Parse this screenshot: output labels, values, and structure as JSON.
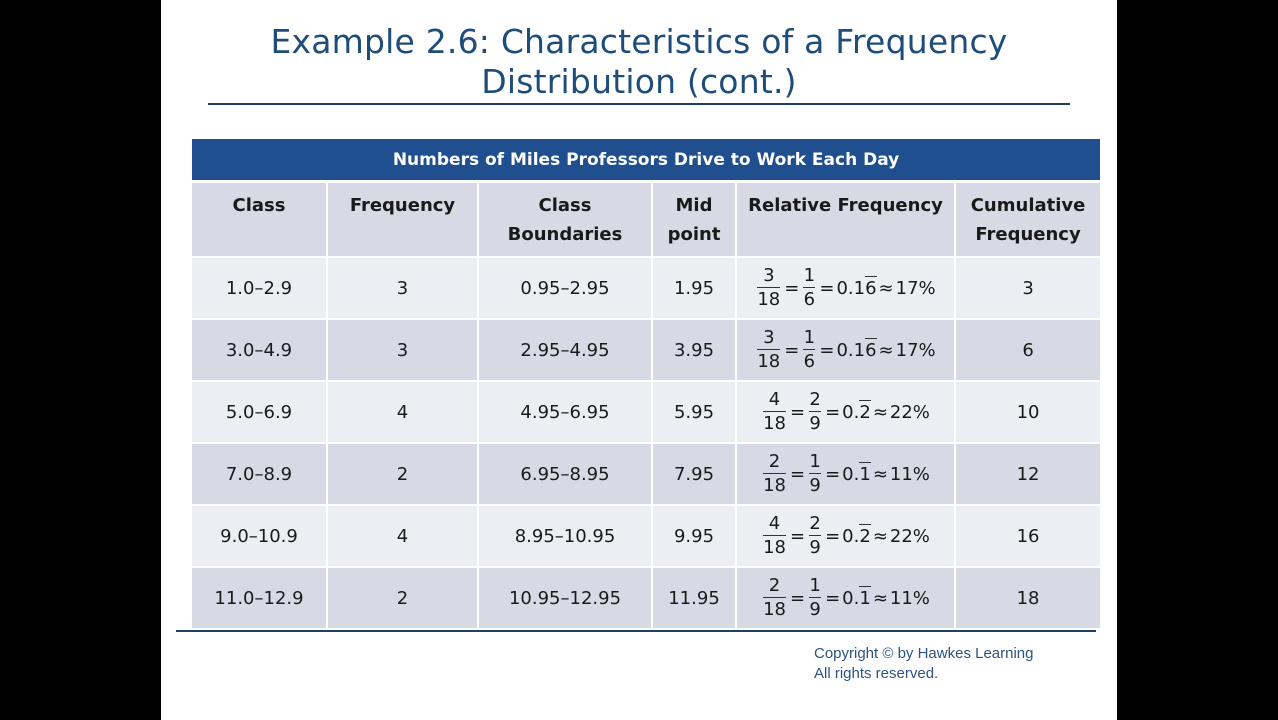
{
  "title": {
    "line1": "Example 2.6: Characteristics of a Frequency",
    "line2": "Distribution (cont.)"
  },
  "table": {
    "caption": "Numbers of Miles Professors Drive to Work Each Day",
    "headers": {
      "class": "Class",
      "frequency": "Frequency",
      "boundaries_1": "Class",
      "boundaries_2": "Boundaries",
      "mid_1": "Mid",
      "mid_2": "point",
      "relative": "Relative Frequency",
      "cumulative_1": "Cumulative",
      "cumulative_2": "Frequency"
    },
    "rows": [
      {
        "class": "1.0–2.9",
        "frequency": "3",
        "boundaries": "0.95–2.95",
        "midpoint": "1.95",
        "rf": {
          "n1": "3",
          "d1": "18",
          "n2": "1",
          "d2": "6",
          "dec_prefix": "0.1",
          "dec_repeat": "6",
          "pct": "17%"
        },
        "cumulative": "3"
      },
      {
        "class": "3.0–4.9",
        "frequency": "3",
        "boundaries": "2.95–4.95",
        "midpoint": "3.95",
        "rf": {
          "n1": "3",
          "d1": "18",
          "n2": "1",
          "d2": "6",
          "dec_prefix": "0.1",
          "dec_repeat": "6",
          "pct": "17%"
        },
        "cumulative": "6"
      },
      {
        "class": "5.0–6.9",
        "frequency": "4",
        "boundaries": "4.95–6.95",
        "midpoint": "5.95",
        "rf": {
          "n1": "4",
          "d1": "18",
          "n2": "2",
          "d2": "9",
          "dec_prefix": "0.",
          "dec_repeat": "2",
          "pct": "22%"
        },
        "cumulative": "10"
      },
      {
        "class": "7.0–8.9",
        "frequency": "2",
        "boundaries": "6.95–8.95",
        "midpoint": "7.95",
        "rf": {
          "n1": "2",
          "d1": "18",
          "n2": "1",
          "d2": "9",
          "dec_prefix": "0.",
          "dec_repeat": "1",
          "pct": "11%"
        },
        "cumulative": "12"
      },
      {
        "class": "9.0–10.9",
        "frequency": "4",
        "boundaries": "8.95–10.95",
        "midpoint": "9.95",
        "rf": {
          "n1": "4",
          "d1": "18",
          "n2": "2",
          "d2": "9",
          "dec_prefix": "0.",
          "dec_repeat": "2",
          "pct": "22%"
        },
        "cumulative": "16"
      },
      {
        "class": "11.0–12.9",
        "frequency": "2",
        "boundaries": "10.95–12.95",
        "midpoint": "11.95",
        "rf": {
          "n1": "2",
          "d1": "18",
          "n2": "1",
          "d2": "9",
          "dec_prefix": "0.",
          "dec_repeat": "1",
          "pct": "11%"
        },
        "cumulative": "18"
      }
    ]
  },
  "copyright": {
    "line1": "Copyright © by Hawkes Learning",
    "line2": "All rights reserved."
  }
}
